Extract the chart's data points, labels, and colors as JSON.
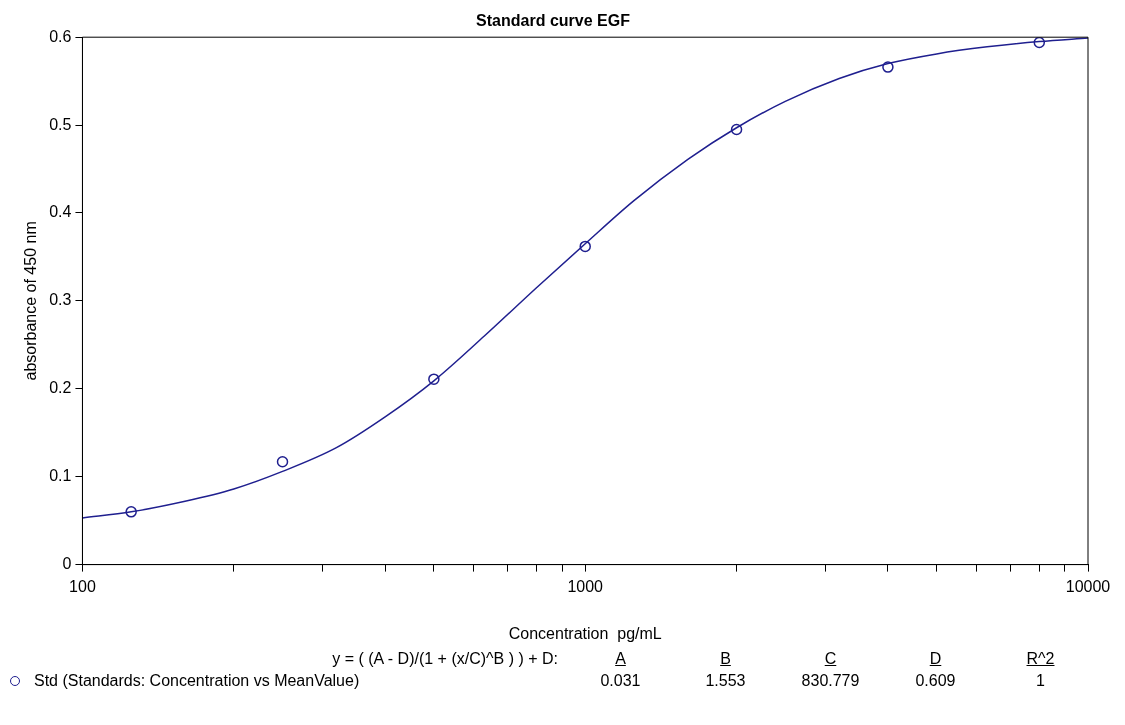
{
  "chart_data": {
    "type": "scatter",
    "title": "Standard curve EGF",
    "xlabel": "Concentration  pg/mL",
    "ylabel": "absorbance of 450 nm",
    "log": "x",
    "grid": false,
    "legend": "bottom",
    "marker": "circle",
    "xlim": [
      100,
      10000
    ],
    "ylim": [
      0,
      0.6
    ],
    "xticks": [
      100,
      {
        "value": 200,
        "label": null
      },
      {
        "value": 300,
        "label": null
      },
      {
        "value": 400,
        "label": null
      },
      {
        "value": 500,
        "label": null
      },
      {
        "value": 600,
        "label": null
      },
      {
        "value": 700,
        "label": null
      },
      {
        "value": 800,
        "label": null
      },
      {
        "value": 900,
        "label": null
      },
      1000,
      {
        "value": 2000,
        "label": null
      },
      {
        "value": 3000,
        "label": null
      },
      {
        "value": 4000,
        "label": null
      },
      {
        "value": 5000,
        "label": null
      },
      {
        "value": 6000,
        "label": null
      },
      {
        "value": 7000,
        "label": null
      },
      {
        "value": 8000,
        "label": null
      },
      {
        "value": 9000,
        "label": null
      },
      10000
    ],
    "yticks": [
      0,
      0.1,
      0.2,
      0.3,
      0.4,
      0.5,
      0.6
    ],
    "series": [
      {
        "name": "Std (Standards: Concentration vs MeanValue)",
        "color": "#1f1f8f",
        "type": "scatter",
        "x": [
          125,
          250,
          500,
          1000,
          2000,
          4000,
          8000
        ],
        "values": [
          0.06,
          0.117,
          0.211,
          0.362,
          0.495,
          0.566,
          0.594
        ]
      },
      {
        "color": "#1f1f8f",
        "type": "line",
        "marker": "none",
        "x": [
          100,
          125,
          160,
          200,
          250,
          320,
          400,
          500,
          630,
          800,
          1000,
          1250,
          1600,
          2000,
          2500,
          3200,
          4000,
          5000,
          6300,
          8000,
          10000
        ],
        "values": [
          0.053,
          0.06,
          0.072,
          0.086,
          0.106,
          0.133,
          0.168,
          0.209,
          0.26,
          0.315,
          0.365,
          0.414,
          0.461,
          0.497,
          0.527,
          0.553,
          0.57,
          0.581,
          0.589,
          0.595,
          0.599
        ]
      }
    ],
    "annotations": [
      "y = ( (A - D)/(1 + (x/C)^B ) ) + D:",
      "A",
      "B",
      "C",
      "D",
      "R^2",
      "0.031",
      "1.553",
      "830.779",
      "0.609",
      "1"
    ]
  }
}
